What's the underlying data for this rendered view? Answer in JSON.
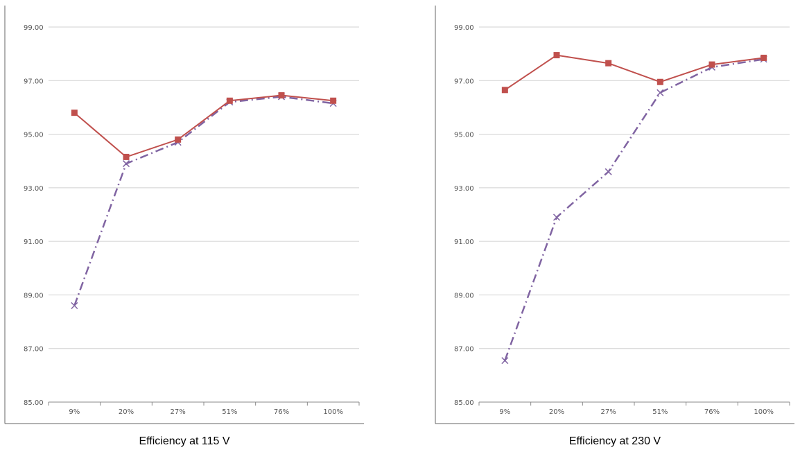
{
  "chart_data": [
    {
      "type": "line",
      "caption": "Efficiency at 115 V",
      "categories": [
        "9%",
        "20%",
        "27%",
        "51%",
        "76%",
        "100%"
      ],
      "y_ticks": [
        "85.00",
        "87.00",
        "89.00",
        "91.00",
        "93.00",
        "95.00",
        "97.00",
        "99.00"
      ],
      "ylim": [
        85,
        99
      ],
      "grid": true,
      "series": [
        {
          "values": [
            95.8,
            94.15,
            94.8,
            96.25,
            96.45,
            96.25
          ],
          "color": "#c0504d",
          "marker": "square",
          "style": "solid"
        },
        {
          "values": [
            88.6,
            93.9,
            94.7,
            96.2,
            96.4,
            96.15
          ],
          "color": "#8064a2",
          "marker": "x",
          "style": "dash-dot"
        }
      ]
    },
    {
      "type": "line",
      "caption": "Efficiency at 230 V",
      "categories": [
        "9%",
        "20%",
        "27%",
        "51%",
        "76%",
        "100%"
      ],
      "y_ticks": [
        "85.00",
        "87.00",
        "89.00",
        "91.00",
        "93.00",
        "95.00",
        "97.00",
        "99.00"
      ],
      "ylim": [
        85,
        99
      ],
      "grid": true,
      "series": [
        {
          "values": [
            96.65,
            97.95,
            97.65,
            96.95,
            97.6,
            97.85
          ],
          "color": "#c0504d",
          "marker": "square",
          "style": "solid"
        },
        {
          "values": [
            86.55,
            91.9,
            93.6,
            96.55,
            97.5,
            97.8
          ],
          "color": "#8064a2",
          "marker": "x",
          "style": "dash-dot"
        }
      ]
    }
  ]
}
